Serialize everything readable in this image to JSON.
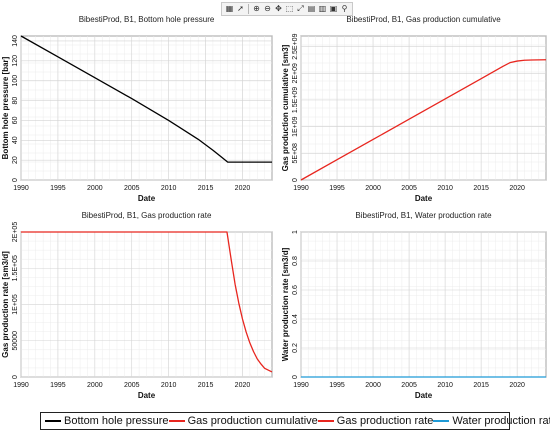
{
  "toolbar": {
    "icons": [
      "layout-icon",
      "pointer-icon",
      "zoom-in-icon",
      "zoom-out-icon",
      "pan-icon",
      "zoom-box-icon",
      "zoom-fit-icon",
      "grid-icon",
      "chart-type-icon",
      "export-icon",
      "pin-icon"
    ]
  },
  "colors": {
    "black": "#000000",
    "red": "#e8261f",
    "cyan": "#1f9ad6",
    "grid": "#d4d4d4"
  },
  "chart_data": [
    {
      "type": "line",
      "title": "BibestiProd, B1, Bottom hole pressure",
      "xlabel": "Date",
      "ylabel": "Bottom hole pressure [bar]",
      "xlim": [
        1990,
        2024
      ],
      "ylim": [
        0,
        145
      ],
      "xticks": [
        "1990",
        "1995",
        "2000",
        "2005",
        "2010",
        "2015",
        "2020"
      ],
      "yticks": [
        "0",
        "20",
        "40",
        "60",
        "80",
        "100",
        "120",
        "140"
      ],
      "grid": true,
      "series": [
        {
          "name": "Bottom hole pressure",
          "color": "#000000",
          "x": [
            1990,
            1995,
            2000,
            2005,
            2010,
            2014,
            2016,
            2017,
            2018,
            2020,
            2024
          ],
          "y": [
            145,
            124,
            103,
            82,
            60,
            41,
            30,
            24,
            18,
            18,
            18
          ]
        }
      ]
    },
    {
      "type": "line",
      "title": "BibestiProd, B1, Gas production cumulative",
      "xlabel": "Date",
      "ylabel": "Gas production cumulative [sm3]",
      "xlim": [
        1990,
        2024
      ],
      "ylim": [
        0,
        2700000000
      ],
      "xticks": [
        "1990",
        "1995",
        "2000",
        "2005",
        "2010",
        "2015",
        "2020"
      ],
      "yticks": [
        "0",
        "5E+08",
        "1E+09",
        "1.5E+09",
        "2E+09",
        "2.5E+09"
      ],
      "grid": true,
      "series": [
        {
          "name": "Gas production cumulative",
          "color": "#e8261f",
          "x": [
            1990,
            1995,
            2000,
            2005,
            2010,
            2015,
            2018,
            2019,
            2020,
            2021,
            2022,
            2024
          ],
          "y": [
            0,
            380000000,
            760000000,
            1140000000,
            1520000000,
            1900000000,
            2130000000,
            2200000000,
            2230000000,
            2245000000,
            2250000000,
            2255000000
          ]
        }
      ]
    },
    {
      "type": "line",
      "title": "BibestiProd, B1, Gas production rate",
      "xlabel": "Date",
      "ylabel": "Gas production rate [sm3/d]",
      "xlim": [
        1990,
        2024
      ],
      "ylim": [
        0,
        200000
      ],
      "xticks": [
        "1990",
        "1995",
        "2000",
        "2005",
        "2010",
        "2015",
        "2020"
      ],
      "yticks": [
        "0",
        "50000",
        "1E+05",
        "1.5E+05",
        "2E+05"
      ],
      "grid": true,
      "series": [
        {
          "name": "Gas production rate",
          "color": "#e8261f",
          "x": [
            1990,
            2000,
            2010,
            2017.9,
            2018.5,
            2019,
            2019.5,
            2020,
            2020.5,
            2021,
            2021.5,
            2022,
            2022.5,
            2023,
            2024
          ],
          "y": [
            200000,
            200000,
            200000,
            200000,
            160000,
            128000,
            102000,
            80000,
            62000,
            47000,
            35000,
            25000,
            18000,
            12000,
            7000
          ]
        }
      ]
    },
    {
      "type": "line",
      "title": "BibestiProd, B1, Water production rate",
      "xlabel": "Date",
      "ylabel": "Water production rate [sm3/d]",
      "xlim": [
        1990,
        2024
      ],
      "ylim": [
        0,
        1
      ],
      "xticks": [
        "1990",
        "1995",
        "2000",
        "2005",
        "2010",
        "2015",
        "2020"
      ],
      "yticks": [
        "0",
        "0.2",
        "0.4",
        "0.6",
        "0.8",
        "1"
      ],
      "grid": true,
      "series": [
        {
          "name": "Water production rate",
          "color": "#1f9ad6",
          "x": [
            1990,
            2024
          ],
          "y": [
            0,
            0
          ]
        }
      ]
    }
  ],
  "legend": {
    "placement": "bottom",
    "items": [
      {
        "label": "Bottom hole pressure",
        "color": "#000000"
      },
      {
        "label": "Gas production cumulative",
        "color": "#e8261f"
      },
      {
        "label": "Gas production rate",
        "color": "#e8261f"
      },
      {
        "label": "Water production rate",
        "color": "#1f9ad6"
      }
    ]
  }
}
